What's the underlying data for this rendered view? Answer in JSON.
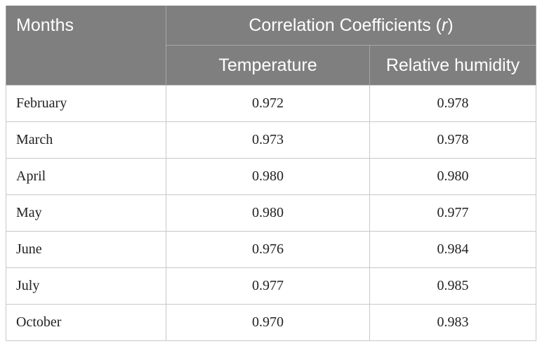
{
  "table": {
    "header": {
      "months_label": "Months",
      "group_label": "Correlation Coefficients (",
      "group_symbol": "r",
      "group_close": ")",
      "col_temperature": "Temperature",
      "col_humidity": "Relative humidity"
    },
    "rows": [
      {
        "month": "February",
        "temperature": "0.972",
        "humidity": "0.978"
      },
      {
        "month": "March",
        "temperature": "0.973",
        "humidity": "0.978"
      },
      {
        "month": "April",
        "temperature": "0.980",
        "humidity": "0.980"
      },
      {
        "month": "May",
        "temperature": "0.980",
        "humidity": "0.977"
      },
      {
        "month": "June",
        "temperature": "0.976",
        "humidity": "0.984"
      },
      {
        "month": "July",
        "temperature": "0.977",
        "humidity": "0.985"
      },
      {
        "month": "October",
        "temperature": "0.970",
        "humidity": "0.983"
      }
    ]
  },
  "colors": {
    "header_background": "#7f7f7f",
    "header_text": "#ffffff",
    "border": "#c8c8c8"
  }
}
